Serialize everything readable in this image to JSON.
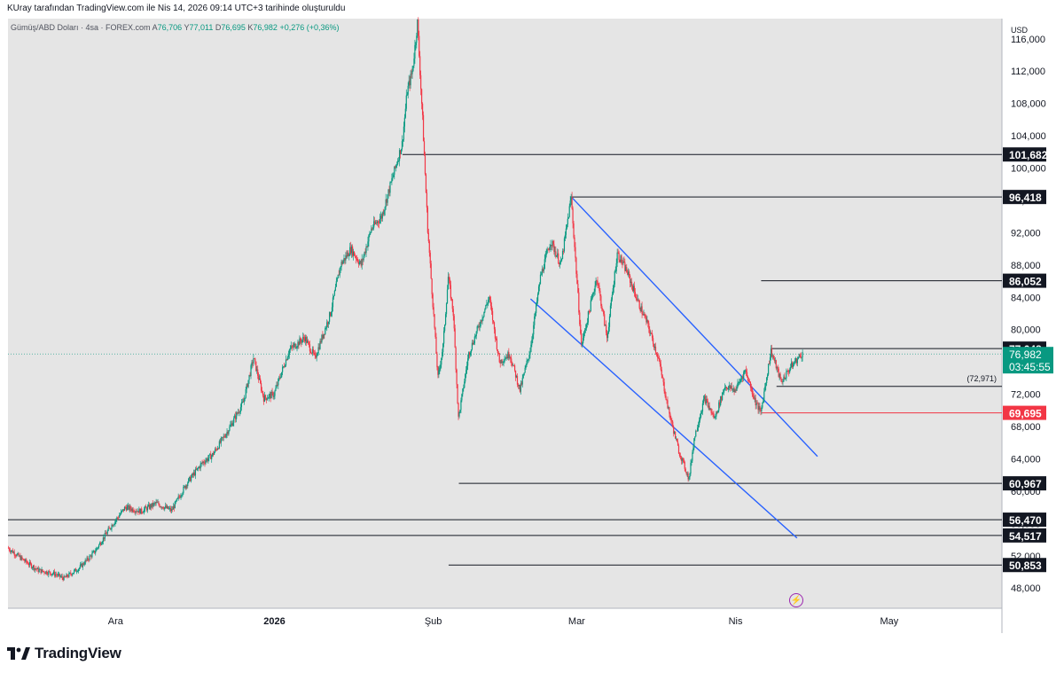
{
  "header": {
    "caption": "KUray tarafından TradingView.com ile Nis 14, 2026 09:14 UTC+3 tarihinde oluşturuldu"
  },
  "symbol": {
    "name": "Gümüş/ABD Doları · 4sa · FOREX.com",
    "open_label": "A",
    "open": "76,706",
    "high_label": "Y",
    "high": "77,011",
    "low_label": "D",
    "low": "76,695",
    "close_label": "K",
    "close": "76,982",
    "change": "+0,276 (+0,36%)"
  },
  "brand": {
    "name": "TradingView",
    "icon": "tradingview-logo-icon"
  },
  "colors": {
    "up": "#089981",
    "down": "#f23645",
    "channel": "#2962ff",
    "level": "#131722",
    "support_red": "#f23645",
    "price_label": "#089981"
  },
  "chart_data": {
    "type": "candlestick",
    "currency": "USD",
    "ylim": [
      45500,
      118500
    ],
    "y_ticks": [
      {
        "value": 48000,
        "label": "48,000"
      },
      {
        "value": 52000,
        "label": "52,000"
      },
      {
        "value": 56000,
        "label": "56,000"
      },
      {
        "value": 60000,
        "label": "60,000"
      },
      {
        "value": 64000,
        "label": "64,000"
      },
      {
        "value": 68000,
        "label": "68,000"
      },
      {
        "value": 72000,
        "label": "72,000"
      },
      {
        "value": 76000,
        "label": "76,000"
      },
      {
        "value": 80000,
        "label": "80,000"
      },
      {
        "value": 84000,
        "label": "84,000"
      },
      {
        "value": 88000,
        "label": "88,000"
      },
      {
        "value": 92000,
        "label": "92,000"
      },
      {
        "value": 96000,
        "label": "96,000"
      },
      {
        "value": 100000,
        "label": "100,000"
      },
      {
        "value": 104000,
        "label": "104,000"
      },
      {
        "value": 108000,
        "label": "108,000"
      },
      {
        "value": 112000,
        "label": "112,000"
      },
      {
        "value": 116000,
        "label": "116,000"
      }
    ],
    "x_ticks": [
      {
        "date": "2025-12-01",
        "label": "Ara",
        "bold": false
      },
      {
        "date": "2026-01-01",
        "label": "2026",
        "bold": true
      },
      {
        "date": "2026-02-01",
        "label": "Şub",
        "bold": false
      },
      {
        "date": "2026-03-01",
        "label": "Mar",
        "bold": false
      },
      {
        "date": "2026-04-01",
        "label": "Nis",
        "bold": false
      },
      {
        "date": "2026-05-01",
        "label": "May",
        "bold": false
      }
    ],
    "xlim": [
      "2025-11-10",
      "2026-05-23"
    ],
    "path": [
      [
        "2025-11-10",
        53000
      ],
      [
        "2025-11-13",
        51500
      ],
      [
        "2025-11-16",
        50200
      ],
      [
        "2025-11-19",
        49800
      ],
      [
        "2025-11-21",
        49200
      ],
      [
        "2025-11-24",
        50500
      ],
      [
        "2025-11-27",
        52500
      ],
      [
        "2025-11-30",
        55500
      ],
      [
        "2025-12-03",
        58000
      ],
      [
        "2025-12-06",
        57500
      ],
      [
        "2025-12-09",
        58500
      ],
      [
        "2025-12-12",
        57600
      ],
      [
        "2025-12-15",
        61000
      ],
      [
        "2025-12-18",
        63500
      ],
      [
        "2025-12-20",
        64500
      ],
      [
        "2025-12-23",
        67500
      ],
      [
        "2025-12-26",
        71000
      ],
      [
        "2025-12-28",
        76500
      ],
      [
        "2025-12-30",
        71500
      ],
      [
        "2026-01-01",
        72000
      ],
      [
        "2026-01-04",
        77500
      ],
      [
        "2026-01-07",
        79000
      ],
      [
        "2026-01-09",
        76500
      ],
      [
        "2026-01-12",
        82000
      ],
      [
        "2026-01-14",
        88000
      ],
      [
        "2026-01-16",
        90000
      ],
      [
        "2026-01-18",
        88000
      ],
      [
        "2026-01-20",
        92500
      ],
      [
        "2026-01-22",
        94000
      ],
      [
        "2026-01-24",
        98500
      ],
      [
        "2026-01-26",
        103000
      ],
      [
        "2026-01-27",
        109500
      ],
      [
        "2026-01-28",
        112000
      ],
      [
        "2026-01-29",
        118000
      ],
      [
        "2026-01-30",
        106000
      ],
      [
        "2026-01-31",
        92500
      ],
      [
        "2026-02-02",
        74000
      ],
      [
        "2026-02-03",
        78000
      ],
      [
        "2026-02-04",
        86500
      ],
      [
        "2026-02-05",
        82000
      ],
      [
        "2026-02-06",
        69000
      ],
      [
        "2026-02-08",
        77000
      ],
      [
        "2026-02-10",
        80500
      ],
      [
        "2026-02-12",
        84000
      ],
      [
        "2026-02-14",
        76000
      ],
      [
        "2026-02-16",
        77000
      ],
      [
        "2026-02-18",
        72500
      ],
      [
        "2026-02-20",
        77500
      ],
      [
        "2026-02-22",
        86500
      ],
      [
        "2026-02-24",
        91000
      ],
      [
        "2026-02-26",
        88000
      ],
      [
        "2026-02-28",
        96400
      ],
      [
        "2026-03-02",
        78000
      ],
      [
        "2026-03-05",
        86500
      ],
      [
        "2026-03-07",
        79000
      ],
      [
        "2026-03-09",
        89500
      ],
      [
        "2026-03-11",
        87000
      ],
      [
        "2026-03-13",
        83500
      ],
      [
        "2026-03-15",
        80500
      ],
      [
        "2026-03-17",
        76500
      ],
      [
        "2026-03-19",
        70000
      ],
      [
        "2026-03-21",
        65000
      ],
      [
        "2026-03-23",
        61500
      ],
      [
        "2026-03-24",
        66500
      ],
      [
        "2026-03-26",
        71500
      ],
      [
        "2026-03-28",
        69000
      ],
      [
        "2026-03-30",
        73000
      ],
      [
        "2026-04-01",
        72500
      ],
      [
        "2026-04-03",
        75000
      ],
      [
        "2026-04-05",
        71000
      ],
      [
        "2026-04-06",
        69700
      ],
      [
        "2026-04-08",
        77400
      ],
      [
        "2026-04-10",
        73500
      ],
      [
        "2026-04-12",
        75500
      ],
      [
        "2026-04-14",
        76982
      ]
    ],
    "levels": [
      {
        "value": 101682,
        "label": "101,682",
        "from": "2026-01-26",
        "color": "#131722"
      },
      {
        "value": 96418,
        "label": "96,418",
        "from": "2026-02-28",
        "color": "#131722"
      },
      {
        "value": 86052,
        "label": "86,052",
        "from": "2026-04-06",
        "color": "#131722"
      },
      {
        "value": 77648,
        "label": "77,648",
        "from": "2026-04-08",
        "color": "#131722"
      },
      {
        "value": 69695,
        "label": "69,695",
        "from": "2026-04-06",
        "color": "#f23645"
      },
      {
        "value": 60967,
        "label": "60,967",
        "from": "2026-02-06",
        "color": "#131722"
      },
      {
        "value": 56470,
        "label": "56,470",
        "from": "2025-11-10",
        "color": "#131722"
      },
      {
        "value": 54517,
        "label": "54,517",
        "from": "2025-11-10",
        "color": "#131722"
      },
      {
        "value": 50853,
        "label": "50,853",
        "from": "2026-02-04",
        "color": "#131722"
      }
    ],
    "extra_line": {
      "value": 72971,
      "label": "(72,971)",
      "from": "2026-04-09"
    },
    "current_price": {
      "value": 76982,
      "label": "76,982",
      "countdown": "03:45:55"
    },
    "channel": [
      {
        "from": [
          "2026-02-28",
          96400
        ],
        "to": [
          "2026-04-17",
          64300
        ]
      },
      {
        "from": [
          "2026-02-20",
          83800
        ],
        "to": [
          "2026-04-13",
          54200
        ]
      }
    ]
  }
}
